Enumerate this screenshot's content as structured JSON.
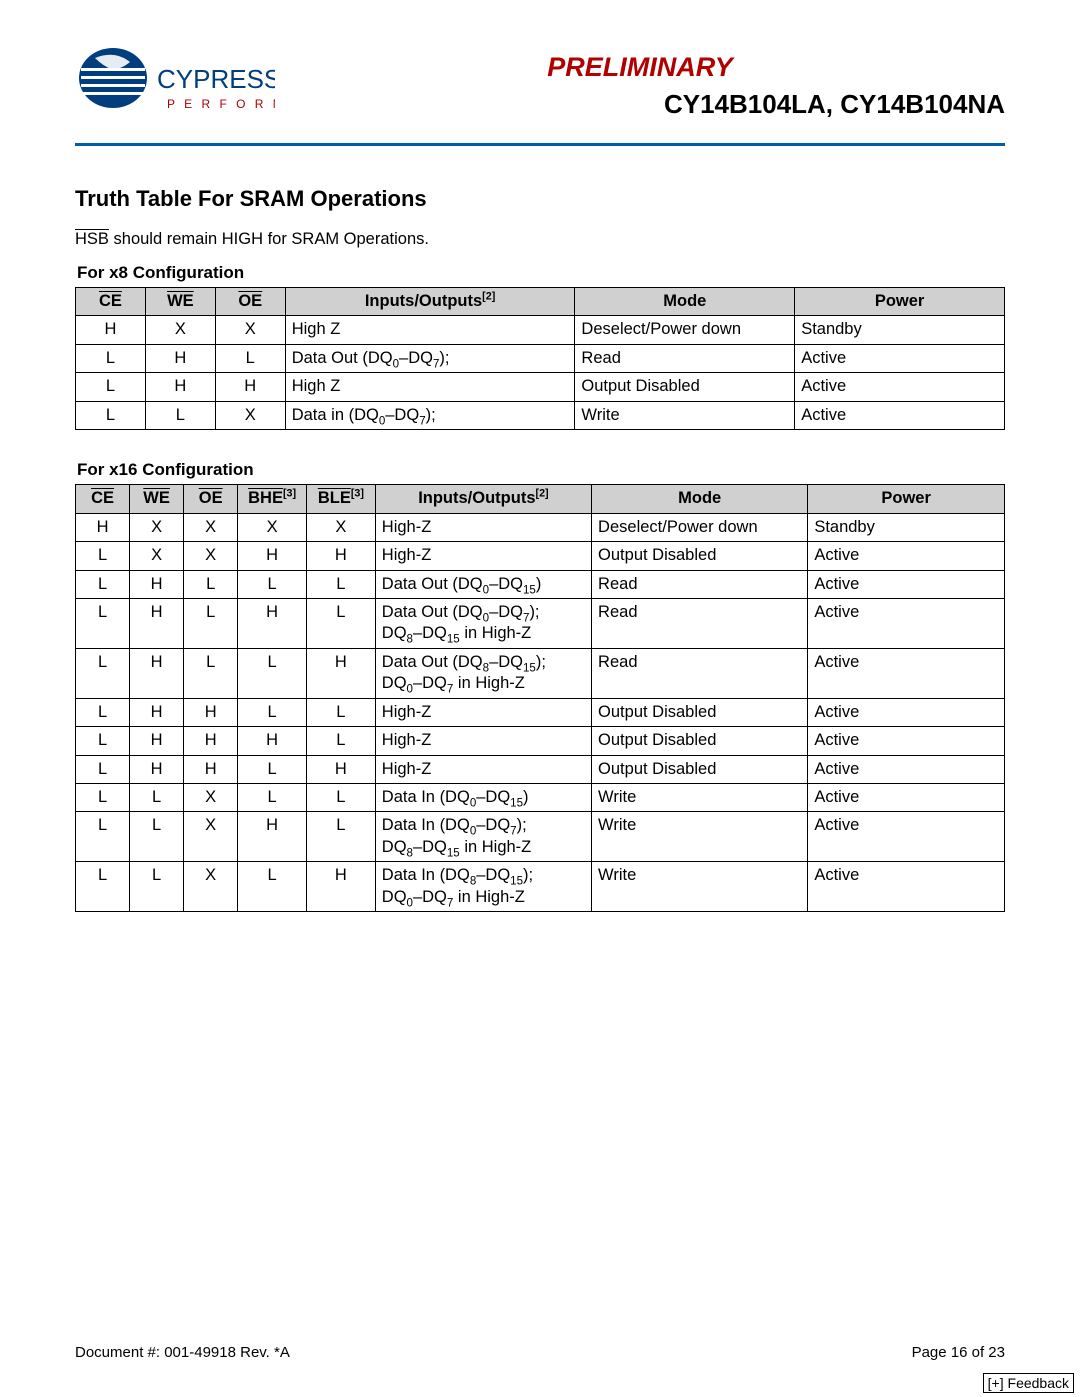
{
  "header": {
    "preliminary": "PRELIMINARY",
    "partnums": "CY14B104LA, CY14B104NA",
    "logo_main": "CYPRESS",
    "logo_tag": "P E R F O R M"
  },
  "section_title": "Truth Table For SRAM Operations",
  "body_text_prefix": "HSB",
  "body_text_rest": " should remain HIGH for SRAM Operations.",
  "table1": {
    "caption": "For x8 Configuration",
    "headers": {
      "ce": "CE",
      "we": "WE",
      "oe": "OE",
      "io": "Inputs/Outputs",
      "io_note": "[2]",
      "mode": "Mode",
      "power": "Power"
    },
    "rows": [
      {
        "ce": "H",
        "we": "X",
        "oe": "X",
        "io": "High Z",
        "mode": "Deselect/Power down",
        "power": "Standby"
      },
      {
        "ce": "L",
        "we": "H",
        "oe": "L",
        "io": "Data Out (DQ<sub>0</sub>–DQ<sub>7</sub>);",
        "mode": "Read",
        "power": "Active"
      },
      {
        "ce": "L",
        "we": "H",
        "oe": "H",
        "io": "High Z",
        "mode": "Output Disabled",
        "power": "Active"
      },
      {
        "ce": "L",
        "we": "L",
        "oe": "X",
        "io": "Data in (DQ<sub>0</sub>–DQ<sub>7</sub>);",
        "mode": "Write",
        "power": "Active"
      }
    ]
  },
  "table2": {
    "caption": "For x16 Configuration",
    "headers": {
      "ce": "CE",
      "we": "WE",
      "oe": "OE",
      "bhe": "BHE",
      "bhe_note": "[3]",
      "ble": "BLE",
      "ble_note": "[3]",
      "io": "Inputs/Outputs",
      "io_note": "[2]",
      "mode": "Mode",
      "power": "Power"
    },
    "rows": [
      {
        "ce": "H",
        "we": "X",
        "oe": "X",
        "bhe": "X",
        "ble": "X",
        "io": "High-Z",
        "mode": "Deselect/Power down",
        "power": "Standby"
      },
      {
        "ce": "L",
        "we": "X",
        "oe": "X",
        "bhe": "H",
        "ble": "H",
        "io": "High-Z",
        "mode": "Output Disabled",
        "power": "Active"
      },
      {
        "ce": "L",
        "we": "H",
        "oe": "L",
        "bhe": "L",
        "ble": "L",
        "io": "Data Out (DQ<sub>0</sub>–DQ<sub>15</sub>)",
        "mode": "Read",
        "power": "Active"
      },
      {
        "ce": "L",
        "we": "H",
        "oe": "L",
        "bhe": "H",
        "ble": "L",
        "io": "Data Out (DQ<sub>0</sub>–DQ<sub>7</sub>);<br>DQ<sub>8</sub>–DQ<sub>15</sub> in High-Z",
        "mode": "Read",
        "power": "Active"
      },
      {
        "ce": "L",
        "we": "H",
        "oe": "L",
        "bhe": "L",
        "ble": "H",
        "io": "Data Out (DQ<sub>8</sub>–DQ<sub>15</sub>);<br>DQ<sub>0</sub>–DQ<sub>7</sub> in High-Z",
        "mode": "Read",
        "power": "Active"
      },
      {
        "ce": "L",
        "we": "H",
        "oe": "H",
        "bhe": "L",
        "ble": "L",
        "io": "High-Z",
        "mode": "Output Disabled",
        "power": "Active"
      },
      {
        "ce": "L",
        "we": "H",
        "oe": "H",
        "bhe": "H",
        "ble": "L",
        "io": "High-Z",
        "mode": "Output Disabled",
        "power": "Active"
      },
      {
        "ce": "L",
        "we": "H",
        "oe": "H",
        "bhe": "L",
        "ble": "H",
        "io": "High-Z",
        "mode": "Output Disabled",
        "power": "Active"
      },
      {
        "ce": "L",
        "we": "L",
        "oe": "X",
        "bhe": "L",
        "ble": "L",
        "io": "Data In (DQ<sub>0</sub>–DQ<sub>15</sub>)",
        "mode": "Write",
        "power": "Active"
      },
      {
        "ce": "L",
        "we": "L",
        "oe": "X",
        "bhe": "H",
        "ble": "L",
        "io": "Data In (DQ<sub>0</sub>–DQ<sub>7</sub>);<br>DQ<sub>8</sub>–DQ<sub>15</sub> in High-Z",
        "mode": "Write",
        "power": "Active"
      },
      {
        "ce": "L",
        "we": "L",
        "oe": "X",
        "bhe": "L",
        "ble": "H",
        "io": "Data In (DQ<sub>8</sub>–DQ<sub>15</sub>);<br>DQ<sub>0</sub>–DQ<sub>7</sub> in High-Z",
        "mode": "Write",
        "power": "Active"
      }
    ]
  },
  "footer": {
    "docnum": "Document #: 001-49918 Rev. *A",
    "page": "Page 16 of 23",
    "feedback": "[+] Feedback"
  },
  "colors": {
    "header_rule": "#005daa",
    "preliminary": "#b00000",
    "th_bg": "#d0d0d0"
  }
}
